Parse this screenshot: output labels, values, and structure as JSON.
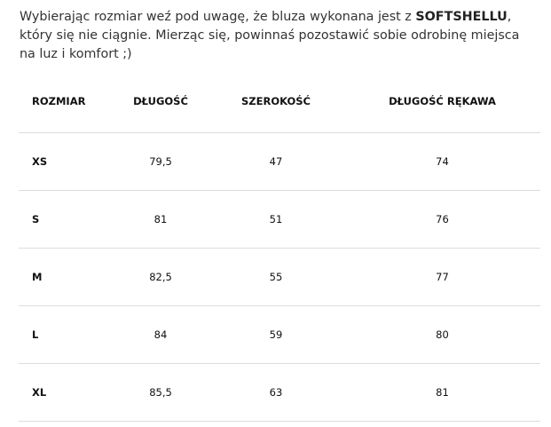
{
  "intro": {
    "text_before": "Wybierając rozmiar weź pod uwagę, że bluza wykonana jest z ",
    "bold": "SOFTSHELLU",
    "text_after": ", który się nie ciągnie. Mierząc się, powinnaś pozostawić sobie odrobinę miejsca na luz i komfort ;)"
  },
  "table": {
    "headers": [
      "ROZMIAR",
      "DŁUGOŚĆ",
      "SZEROKOŚĆ",
      "DŁUGOŚĆ RĘKAWA"
    ],
    "rows": [
      [
        "XS",
        "79,5",
        "47",
        "74"
      ],
      [
        "S",
        "81",
        "51",
        "76"
      ],
      [
        "M",
        "82,5",
        "55",
        "77"
      ],
      [
        "L",
        "84",
        "59",
        "80"
      ],
      [
        "XL",
        "85,5",
        "63",
        "81"
      ]
    ]
  }
}
